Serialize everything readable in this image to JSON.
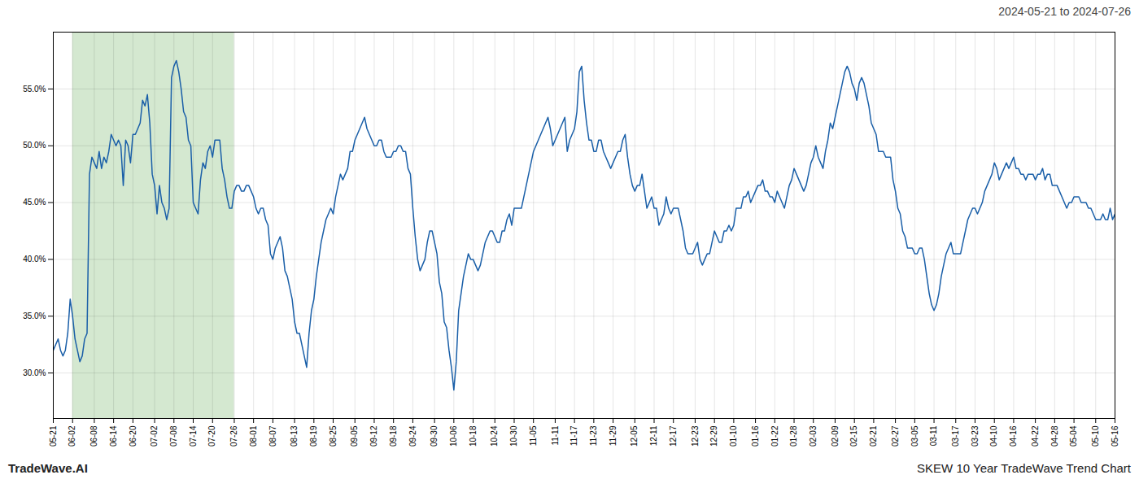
{
  "chart_data": {
    "type": "line",
    "title": "2024-05-21 to 2024-07-26",
    "annotations": [
      "TradeWave.AI",
      "SKEW 10 Year TradeWave Trend Chart"
    ],
    "color": "#1a5fa8",
    "grid": true,
    "ylim": [
      26.0,
      60.0
    ],
    "yticks": [
      {
        "value": 30.0,
        "label": "30.0%"
      },
      {
        "value": 35.0,
        "label": "35.0%"
      },
      {
        "value": 40.0,
        "label": "40.0%"
      },
      {
        "value": 45.0,
        "label": "45.0%"
      },
      {
        "value": 50.0,
        "label": "50.0%"
      },
      {
        "value": 55.0,
        "label": "55.0%"
      }
    ],
    "highlight": {
      "x": [
        "06-02",
        "07-26"
      ],
      "color": "#d4e8d0"
    },
    "x": [
      "05-21",
      null,
      null,
      null,
      null,
      null,
      null,
      null,
      "06-02",
      null,
      null,
      null,
      null,
      null,
      null,
      null,
      null,
      "06-08",
      null,
      null,
      null,
      null,
      null,
      null,
      null,
      "06-14",
      null,
      null,
      null,
      null,
      null,
      null,
      null,
      "06-20",
      null,
      null,
      null,
      null,
      null,
      null,
      null,
      null,
      "07-02",
      null,
      null,
      null,
      null,
      null,
      null,
      null,
      "07-08",
      null,
      null,
      null,
      null,
      null,
      null,
      null,
      "07-14",
      null,
      null,
      null,
      null,
      null,
      null,
      null,
      "07-20",
      null,
      null,
      null,
      null,
      null,
      null,
      null,
      null,
      "07-26",
      null,
      null,
      null,
      null,
      null,
      null,
      null,
      "08-01",
      null,
      null,
      null,
      null,
      null,
      null,
      null,
      "08-07",
      null,
      null,
      null,
      null,
      null,
      null,
      null,
      null,
      "08-13",
      null,
      null,
      null,
      null,
      null,
      null,
      null,
      "08-19",
      null,
      null,
      null,
      null,
      null,
      null,
      null,
      "08-25",
      null,
      null,
      null,
      null,
      null,
      null,
      null,
      null,
      "09-05",
      null,
      null,
      null,
      null,
      null,
      null,
      null,
      "09-12",
      null,
      null,
      null,
      null,
      null,
      null,
      null,
      "09-18",
      null,
      null,
      null,
      null,
      null,
      null,
      null,
      "09-24",
      null,
      null,
      null,
      null,
      null,
      null,
      null,
      null,
      "09-30",
      null,
      null,
      null,
      null,
      null,
      null,
      null,
      "10-06",
      null,
      null,
      null,
      null,
      null,
      null,
      null,
      "10-18",
      null,
      null,
      null,
      null,
      null,
      null,
      null,
      null,
      "10-24",
      null,
      null,
      null,
      null,
      null,
      null,
      null,
      "10-30",
      null,
      null,
      null,
      null,
      null,
      null,
      null,
      "11-05",
      null,
      null,
      null,
      null,
      null,
      null,
      null,
      null,
      "11-11",
      null,
      null,
      null,
      null,
      null,
      null,
      null,
      "11-17",
      null,
      null,
      null,
      null,
      null,
      null,
      null,
      "11-23",
      null,
      null,
      null,
      null,
      null,
      null,
      null,
      "11-29",
      null,
      null,
      null,
      null,
      null,
      null,
      null,
      null,
      "12-05",
      null,
      null,
      null,
      null,
      null,
      null,
      null,
      "12-11",
      null,
      null,
      null,
      null,
      null,
      null,
      null,
      "12-17",
      null,
      null,
      null,
      null,
      null,
      null,
      null,
      null,
      "12-23",
      null,
      null,
      null,
      null,
      null,
      null,
      null,
      "12-29",
      null,
      null,
      null,
      null,
      null,
      null,
      null,
      "01-10",
      null,
      null,
      null,
      null,
      null,
      null,
      null,
      null,
      "01-16",
      null,
      null,
      null,
      null,
      null,
      null,
      null,
      "01-22",
      null,
      null,
      null,
      null,
      null,
      null,
      null,
      "01-28",
      null,
      null,
      null,
      null,
      null,
      null,
      null,
      "02-03",
      null,
      null,
      null,
      null,
      null,
      null,
      null,
      null,
      "02-09",
      null,
      null,
      null,
      null,
      null,
      null,
      null,
      "02-15",
      null,
      null,
      null,
      null,
      null,
      null,
      null,
      "02-21",
      null,
      null,
      null,
      null,
      null,
      null,
      null,
      null,
      "02-27",
      null,
      null,
      null,
      null,
      null,
      null,
      null,
      "03-05",
      null,
      null,
      null,
      null,
      null,
      null,
      null,
      "03-11",
      null,
      null,
      null,
      null,
      null,
      null,
      null,
      null,
      "03-17",
      null,
      null,
      null,
      null,
      null,
      null,
      null,
      "03-23",
      null,
      null,
      null,
      null,
      null,
      null,
      null,
      "04-10",
      null,
      null,
      null,
      null,
      null,
      null,
      null,
      "04-16",
      null,
      null,
      null,
      null,
      null,
      null,
      null,
      null,
      "04-22",
      null,
      null,
      null,
      null,
      null,
      null,
      null,
      "04-28",
      null,
      null,
      null,
      null,
      null,
      null,
      null,
      "05-04",
      null,
      null,
      null,
      null,
      null,
      null,
      null,
      null,
      "05-10",
      null,
      null,
      null,
      null,
      null,
      null,
      null,
      "05-16"
    ],
    "values": [
      32.0,
      32.5,
      33.0,
      32.0,
      31.5,
      32.0,
      33.5,
      36.5,
      35.0,
      33.0,
      32.0,
      31.0,
      31.5,
      33.0,
      33.5,
      47.5,
      49.0,
      48.5,
      48.0,
      49.5,
      48.0,
      49.0,
      48.5,
      49.5,
      51.0,
      50.5,
      50.0,
      50.5,
      50.0,
      46.5,
      50.5,
      50.0,
      48.5,
      51.0,
      51.0,
      51.5,
      52.0,
      54.0,
      53.5,
      54.5,
      52.0,
      47.5,
      46.5,
      44.0,
      46.5,
      45.0,
      44.5,
      43.5,
      44.5,
      56.0,
      57.0,
      57.5,
      56.5,
      55.0,
      53.0,
      52.5,
      50.5,
      50.0,
      45.0,
      44.5,
      44.0,
      47.0,
      48.5,
      48.0,
      49.5,
      50.0,
      49.0,
      50.5,
      50.5,
      50.5,
      48.0,
      47.0,
      45.5,
      44.5,
      44.5,
      46.0,
      46.5,
      46.5,
      46.0,
      46.0,
      46.5,
      46.5,
      46.0,
      45.5,
      44.5,
      44.0,
      44.5,
      44.5,
      43.5,
      43.0,
      40.5,
      40.0,
      41.0,
      41.5,
      42.0,
      41.0,
      39.0,
      38.5,
      37.5,
      36.5,
      34.5,
      33.5,
      33.5,
      32.5,
      31.5,
      30.5,
      33.5,
      35.5,
      36.5,
      38.5,
      40.0,
      41.5,
      42.5,
      43.5,
      44.0,
      44.5,
      44.0,
      45.5,
      46.5,
      47.5,
      47.0,
      47.5,
      48.0,
      49.5,
      49.5,
      50.5,
      51.0,
      51.5,
      52.0,
      52.5,
      51.5,
      51.0,
      50.5,
      50.0,
      50.0,
      50.5,
      50.5,
      49.5,
      49.0,
      49.0,
      49.0,
      49.5,
      49.5,
      50.0,
      50.0,
      49.5,
      49.5,
      48.0,
      47.5,
      44.5,
      42.0,
      40.0,
      39.0,
      39.5,
      40.0,
      41.5,
      42.5,
      42.5,
      41.5,
      40.5,
      38.0,
      37.0,
      34.5,
      34.0,
      32.0,
      30.5,
      28.5,
      31.0,
      35.5,
      37.0,
      38.5,
      39.5,
      40.5,
      40.0,
      40.0,
      39.5,
      39.0,
      39.5,
      40.5,
      41.5,
      42.0,
      42.5,
      42.5,
      42.0,
      41.5,
      41.5,
      42.5,
      42.5,
      43.5,
      44.0,
      43.0,
      44.5,
      44.5,
      44.5,
      44.5,
      45.5,
      46.5,
      47.5,
      48.5,
      49.5,
      50.0,
      50.5,
      51.0,
      51.5,
      52.0,
      52.5,
      51.5,
      50.0,
      50.5,
      51.0,
      51.5,
      52.0,
      52.5,
      49.5,
      50.5,
      51.0,
      51.5,
      53.0,
      56.5,
      57.0,
      54.0,
      52.0,
      50.5,
      50.5,
      49.5,
      49.5,
      50.5,
      50.5,
      49.5,
      49.0,
      48.5,
      48.0,
      48.5,
      49.0,
      49.5,
      49.5,
      50.5,
      51.0,
      49.0,
      47.5,
      46.5,
      46.0,
      46.5,
      46.5,
      47.5,
      46.0,
      44.5,
      45.0,
      45.5,
      44.5,
      44.5,
      43.0,
      43.5,
      44.0,
      45.5,
      44.5,
      44.0,
      44.5,
      44.5,
      44.5,
      43.5,
      42.5,
      41.0,
      40.5,
      40.5,
      40.5,
      41.0,
      41.5,
      40.0,
      39.5,
      40.0,
      40.5,
      40.5,
      41.5,
      42.5,
      42.0,
      41.5,
      41.5,
      42.5,
      42.5,
      43.0,
      42.5,
      43.0,
      44.5,
      44.5,
      44.5,
      45.5,
      45.5,
      46.0,
      45.0,
      45.5,
      46.0,
      46.5,
      46.5,
      47.0,
      46.0,
      46.0,
      45.5,
      45.5,
      45.0,
      46.0,
      45.5,
      45.0,
      44.5,
      45.5,
      46.5,
      47.0,
      48.0,
      47.5,
      47.0,
      46.5,
      46.0,
      46.5,
      47.5,
      48.5,
      49.0,
      50.0,
      49.0,
      48.5,
      48.0,
      49.5,
      50.5,
      52.0,
      51.5,
      52.5,
      53.5,
      54.5,
      55.5,
      56.5,
      57.0,
      56.5,
      55.5,
      55.0,
      54.0,
      55.5,
      56.0,
      55.5,
      54.5,
      53.5,
      52.0,
      51.5,
      51.0,
      49.5,
      49.5,
      49.5,
      49.0,
      49.0,
      49.0,
      47.0,
      46.0,
      44.5,
      44.0,
      42.5,
      42.0,
      41.0,
      41.0,
      41.0,
      40.5,
      40.5,
      41.0,
      41.0,
      40.0,
      38.5,
      37.0,
      36.0,
      35.5,
      36.0,
      37.0,
      38.5,
      39.5,
      40.5,
      41.0,
      41.5,
      40.5,
      40.5,
      40.5,
      40.5,
      41.5,
      42.5,
      43.5,
      44.0,
      44.5,
      44.5,
      44.0,
      44.5,
      45.0,
      46.0,
      46.5,
      47.0,
      47.5,
      48.5,
      48.0,
      47.0,
      47.5,
      48.0,
      48.5,
      48.0,
      48.5,
      49.0,
      48.0,
      48.0,
      47.5,
      47.5,
      47.0,
      47.5,
      47.5,
      47.5,
      47.0,
      47.5,
      47.5,
      48.0,
      47.0,
      47.5,
      47.5,
      46.5,
      46.5,
      46.5,
      46.0,
      45.5,
      45.0,
      44.5,
      45.0,
      45.0,
      45.5,
      45.5,
      45.5,
      45.0,
      45.0,
      45.0,
      44.5,
      44.5,
      44.0,
      43.5,
      43.5,
      43.5,
      44.0,
      43.5,
      43.5,
      44.5,
      43.5,
      44.0
    ]
  }
}
